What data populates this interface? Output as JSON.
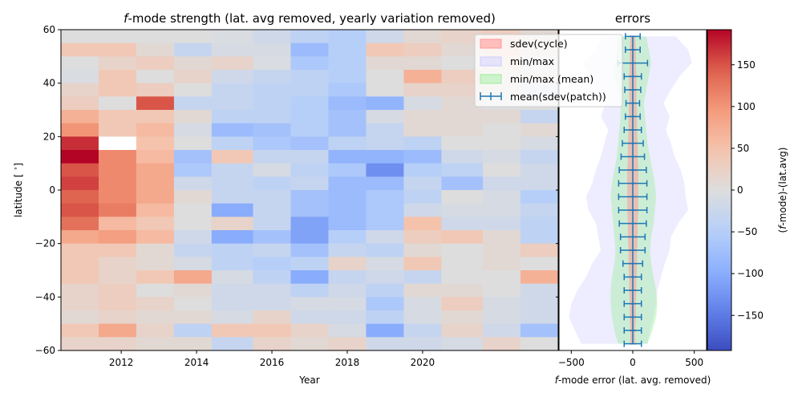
{
  "chart_data": [
    {
      "type": "heatmap",
      "title": "f-mode strength (lat. avg removed, yearly variation removed)",
      "title_parts": {
        "italic": "f",
        "rest": "-mode strength (lat. avg removed, yearly variation removed)"
      },
      "xlabel": "Year",
      "ylabel": "latitude [$^\\circ$]",
      "ylabel_parts": {
        "main": "latitude [ ",
        "sup": "∘",
        "end": "]"
      },
      "xlim": [
        2010.4,
        2023.6
      ],
      "ylim": [
        -60,
        60
      ],
      "xticks": [
        "2012",
        "2014",
        "2016",
        "2018",
        "2020"
      ],
      "xtick_values": [
        2012,
        2014,
        2016,
        2018,
        2020
      ],
      "yticks": [
        "60",
        "40",
        "20",
        "0",
        "−20",
        "−40",
        "−60"
      ],
      "ytick_values": [
        60,
        40,
        20,
        0,
        -20,
        -40,
        -60
      ],
      "x_edges": [
        2010.4,
        2011.4,
        2012.4,
        2013.4,
        2014.4,
        2015.5,
        2016.5,
        2017.5,
        2018.5,
        2019.5,
        2020.5,
        2021.6,
        2022.6,
        2023.6
      ],
      "lat_edges": [
        60,
        55,
        50,
        45,
        40,
        35,
        30,
        25,
        20,
        15,
        10,
        5,
        0,
        -5,
        -10,
        -15,
        -20,
        -25,
        -30,
        -35,
        -40,
        -45,
        -50,
        -55,
        -60
      ],
      "value_range": [
        -192,
        192
      ],
      "values": [
        [
          0,
          0,
          0,
          0,
          -5,
          -20,
          -40,
          -50,
          -20,
          10,
          20,
          30,
          10
        ],
        [
          40,
          40,
          10,
          -30,
          -10,
          -10,
          -80,
          -50,
          40,
          30,
          10,
          40,
          10
        ],
        [
          0,
          20,
          30,
          10,
          20,
          -5,
          -60,
          -50,
          10,
          10,
          0,
          20,
          0
        ],
        [
          -5,
          40,
          0,
          20,
          -20,
          -30,
          -40,
          -50,
          0,
          70,
          30,
          10,
          10
        ],
        [
          20,
          40,
          30,
          0,
          -30,
          -40,
          -40,
          -60,
          0,
          20,
          20,
          10,
          -20
        ],
        [
          30,
          0,
          150,
          -30,
          -30,
          -40,
          -50,
          -80,
          -90,
          -10,
          10,
          0,
          0
        ],
        [
          70,
          40,
          40,
          10,
          -40,
          -40,
          -50,
          -70,
          -10,
          10,
          10,
          10,
          -30
        ],
        [
          100,
          40,
          60,
          -10,
          -80,
          -70,
          -50,
          -70,
          -30,
          10,
          10,
          0,
          10
        ],
        [
          170,
          null,
          50,
          0,
          -40,
          -60,
          -70,
          -40,
          -30,
          -40,
          0,
          0,
          -10
        ],
        [
          192,
          110,
          60,
          -70,
          40,
          -30,
          -30,
          -90,
          -90,
          -80,
          -20,
          -10,
          -30
        ],
        [
          150,
          110,
          80,
          -60,
          -30,
          -10,
          -40,
          -60,
          -130,
          -50,
          -40,
          0,
          -20
        ],
        [
          160,
          110,
          80,
          -20,
          -30,
          -40,
          -30,
          -80,
          -80,
          -30,
          -70,
          -20,
          -20
        ],
        [
          140,
          110,
          80,
          10,
          -30,
          -30,
          -70,
          -80,
          -60,
          -40,
          0,
          -10,
          -50
        ],
        [
          150,
          120,
          60,
          0,
          -100,
          -30,
          -70,
          -80,
          -60,
          -20,
          -10,
          -10,
          -30
        ],
        [
          130,
          60,
          40,
          0,
          20,
          -30,
          -110,
          -80,
          -60,
          50,
          -20,
          -20,
          -40
        ],
        [
          80,
          90,
          60,
          -20,
          -100,
          -70,
          -110,
          -50,
          -20,
          30,
          40,
          10,
          -40
        ],
        [
          40,
          40,
          10,
          -30,
          -40,
          -30,
          -70,
          -30,
          -40,
          10,
          0,
          10,
          30
        ],
        [
          40,
          20,
          10,
          -10,
          -40,
          -50,
          -40,
          20,
          -10,
          40,
          0,
          10,
          0
        ],
        [
          40,
          20,
          40,
          80,
          -10,
          -40,
          -100,
          -30,
          -20,
          -30,
          0,
          0,
          70
        ],
        [
          20,
          30,
          0,
          10,
          -20,
          -20,
          -40,
          -20,
          -40,
          10,
          10,
          0,
          -20
        ],
        [
          20,
          30,
          20,
          0,
          -20,
          -20,
          -10,
          -10,
          -60,
          -10,
          30,
          -10,
          -20
        ],
        [
          10,
          20,
          10,
          10,
          -10,
          20,
          -20,
          -20,
          -40,
          -10,
          10,
          -10,
          -20
        ],
        [
          40,
          80,
          20,
          -40,
          40,
          40,
          20,
          -10,
          -100,
          -30,
          20,
          -20,
          -70
        ],
        [
          20,
          20,
          10,
          10,
          -30,
          20,
          10,
          20,
          -20,
          -20,
          -10,
          20,
          0
        ]
      ]
    },
    {
      "type": "line",
      "title": "errors",
      "xlabel": "f-mode error  (lat. avg. removed)",
      "xlabel_parts": {
        "italic": "f",
        "rest": "-mode error  (lat. avg. removed)"
      },
      "xlim": [
        -600,
        600
      ],
      "ylim": [
        -60,
        60
      ],
      "xticks": [
        "−500",
        "0",
        "500"
      ],
      "xtick_values": [
        -500,
        0,
        500
      ],
      "latitudes": [
        57.5,
        52.5,
        47.5,
        42.5,
        37.5,
        32.5,
        27.5,
        22.5,
        17.5,
        12.5,
        7.5,
        2.5,
        -2.5,
        -7.5,
        -12.5,
        -17.5,
        -22.5,
        -27.5,
        -32.5,
        -37.5,
        -42.5,
        -47.5,
        -52.5,
        -57.5
      ],
      "series": [
        {
          "name": "sdev(cycle)",
          "color": "#ff9999",
          "half_width": [
            20,
            25,
            25,
            30,
            30,
            30,
            35,
            35,
            40,
            40,
            45,
            45,
            45,
            45,
            40,
            40,
            35,
            35,
            30,
            30,
            25,
            25,
            20,
            20
          ]
        },
        {
          "name": "min/max",
          "color": "#ccccff",
          "min": [
            -250,
            -300,
            -400,
            -350,
            -300,
            -220,
            -260,
            -200,
            -230,
            -260,
            -300,
            -330,
            -380,
            -360,
            -300,
            -280,
            -260,
            -330,
            -380,
            -450,
            -500,
            -520,
            -470,
            -420
          ],
          "max": [
            350,
            450,
            480,
            380,
            310,
            250,
            300,
            270,
            310,
            340,
            390,
            420,
            430,
            450,
            370,
            310,
            300,
            260,
            230,
            200,
            190,
            170,
            140,
            120
          ]
        },
        {
          "name": "min/max (mean)",
          "color": "#99ee99",
          "min": [
            -120,
            -130,
            -140,
            -150,
            -120,
            -100,
            -100,
            -110,
            -120,
            -130,
            -150,
            -170,
            -180,
            -170,
            -160,
            -150,
            -140,
            -150,
            -170,
            -180,
            -180,
            -170,
            -150,
            -120
          ],
          "max": [
            110,
            130,
            150,
            130,
            110,
            90,
            100,
            110,
            120,
            140,
            160,
            180,
            190,
            180,
            170,
            150,
            140,
            150,
            170,
            190,
            200,
            190,
            160,
            120
          ]
        },
        {
          "name": "mean(sdev(patch))",
          "color": "#1f77b4",
          "err": [
            60,
            60,
            120,
            70,
            65,
            55,
            60,
            70,
            85,
            95,
            110,
            115,
            115,
            115,
            110,
            100,
            100,
            80,
            70,
            70,
            70,
            70,
            70,
            70
          ]
        }
      ]
    },
    {
      "type": "colorbar",
      "label": "(f-mode)-(lat.avg)",
      "label_parts": {
        "open": "(",
        "italic": "f",
        "rest": "-mode)-(lat.avg)"
      },
      "range": [
        -192,
        192
      ],
      "ticks": [
        "150",
        "100",
        "50",
        "0",
        "−50",
        "−100",
        "−150"
      ],
      "tick_values": [
        150,
        100,
        50,
        0,
        -50,
        -100,
        -150
      ],
      "colormap": "coolwarm"
    }
  ]
}
